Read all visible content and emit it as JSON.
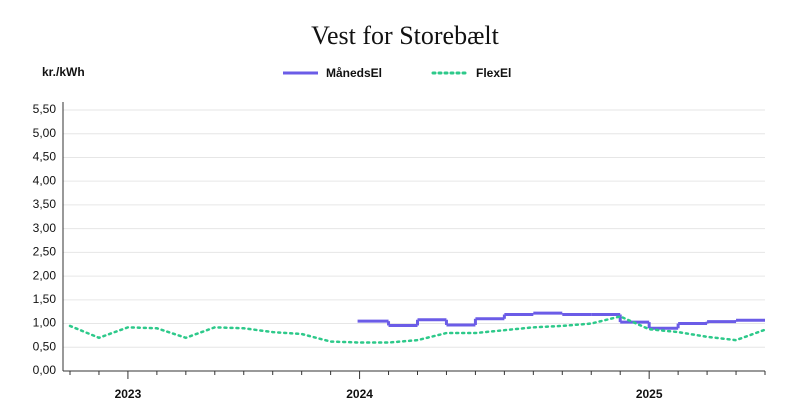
{
  "chart_data": {
    "type": "line",
    "title": "Vest for Storebælt",
    "y_label": "kr./kWh",
    "categories": [
      null,
      null,
      "2023",
      null,
      null,
      null,
      null,
      null,
      null,
      null,
      "2024",
      null,
      null,
      null,
      null,
      null,
      null,
      null,
      null,
      null,
      "2025",
      null,
      null,
      null,
      null
    ],
    "series": [
      {
        "name": "MånedsEl",
        "color": "#6b5ce7",
        "style": "step",
        "values": [
          null,
          null,
          null,
          null,
          null,
          null,
          null,
          null,
          null,
          null,
          1.05,
          0.96,
          1.08,
          0.97,
          1.1,
          1.19,
          1.22,
          1.19,
          1.19,
          1.03,
          0.9,
          1.0,
          1.04,
          1.07,
          null
        ]
      },
      {
        "name": "FlexEl",
        "color": "#2dc98a",
        "style": "dotted",
        "values": [
          0.95,
          0.7,
          0.92,
          0.9,
          0.7,
          0.92,
          0.9,
          0.82,
          0.78,
          0.62,
          0.6,
          0.6,
          0.65,
          0.8,
          0.8,
          0.86,
          0.92,
          0.95,
          1.0,
          1.15,
          0.88,
          0.82,
          0.72,
          0.65,
          0.87
        ]
      }
    ],
    "ylim": [
      0,
      5.5
    ],
    "yticks": [
      {
        "value": 0,
        "label": "0,00"
      },
      {
        "value": 0.5,
        "label": "0,50"
      },
      {
        "value": 1,
        "label": "1,00"
      },
      {
        "value": 1.5,
        "label": "1,50"
      },
      {
        "value": 2,
        "label": "2,00"
      },
      {
        "value": 2.5,
        "label": "2,50"
      },
      {
        "value": 3,
        "label": "3,00"
      },
      {
        "value": 3.5,
        "label": "3,50"
      },
      {
        "value": 4,
        "label": "4,00"
      },
      {
        "value": 4.5,
        "label": "4,50"
      },
      {
        "value": 5,
        "label": "5,00"
      },
      {
        "value": 5.5,
        "label": "5,50"
      }
    ],
    "grid": true
  }
}
